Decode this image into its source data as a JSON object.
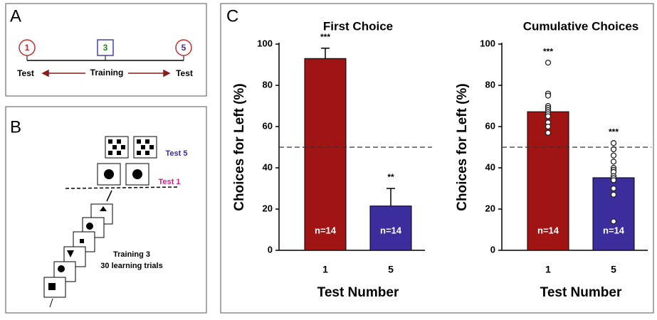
{
  "panels": {
    "a": "A",
    "b": "B",
    "c": "C"
  },
  "panel_a": {
    "markers": [
      "1",
      "3",
      "5"
    ],
    "labels": [
      "Test",
      "Training",
      "Test"
    ]
  },
  "panel_b": {
    "labels": [
      "Test 5",
      "Test 1",
      "Training 3",
      "30 learning trials"
    ]
  },
  "chart_data": [
    {
      "type": "bar",
      "title": "First Choice",
      "y_label": "Choices for Left (%)",
      "x_label": "Test Number",
      "categories": [
        "1",
        "5"
      ],
      "values": [
        93,
        21.5
      ],
      "errors": [
        5,
        8.5
      ],
      "colors": [
        "#a01414",
        "#3b2d9b"
      ],
      "n_labels": [
        "n=14",
        "n=14"
      ],
      "significance": [
        "***",
        "**"
      ],
      "ylim": [
        0,
        100
      ],
      "yticks": [
        0,
        20,
        40,
        60,
        80,
        100
      ],
      "reference_line": 50
    },
    {
      "type": "bar",
      "title": "Cumulative Choices",
      "y_label": "Choices for Left (%)",
      "x_label": "Test Number",
      "categories": [
        "1",
        "5"
      ],
      "values": [
        67.2,
        35.2
      ],
      "points": [
        [
          91,
          76,
          75,
          70,
          69,
          69,
          68,
          67,
          66,
          65,
          62,
          60,
          57,
          57
        ],
        [
          52,
          49,
          46,
          43,
          40,
          39,
          38,
          38,
          36,
          35,
          34,
          30,
          27,
          14
        ]
      ],
      "colors": [
        "#a01414",
        "#3b2d9b"
      ],
      "n_labels": [
        "n=14",
        "n=14"
      ],
      "significance": [
        "***",
        "***"
      ],
      "ylim": [
        0,
        100
      ],
      "yticks": [
        0,
        20,
        40,
        60,
        80,
        100
      ],
      "reference_line": 50
    }
  ]
}
